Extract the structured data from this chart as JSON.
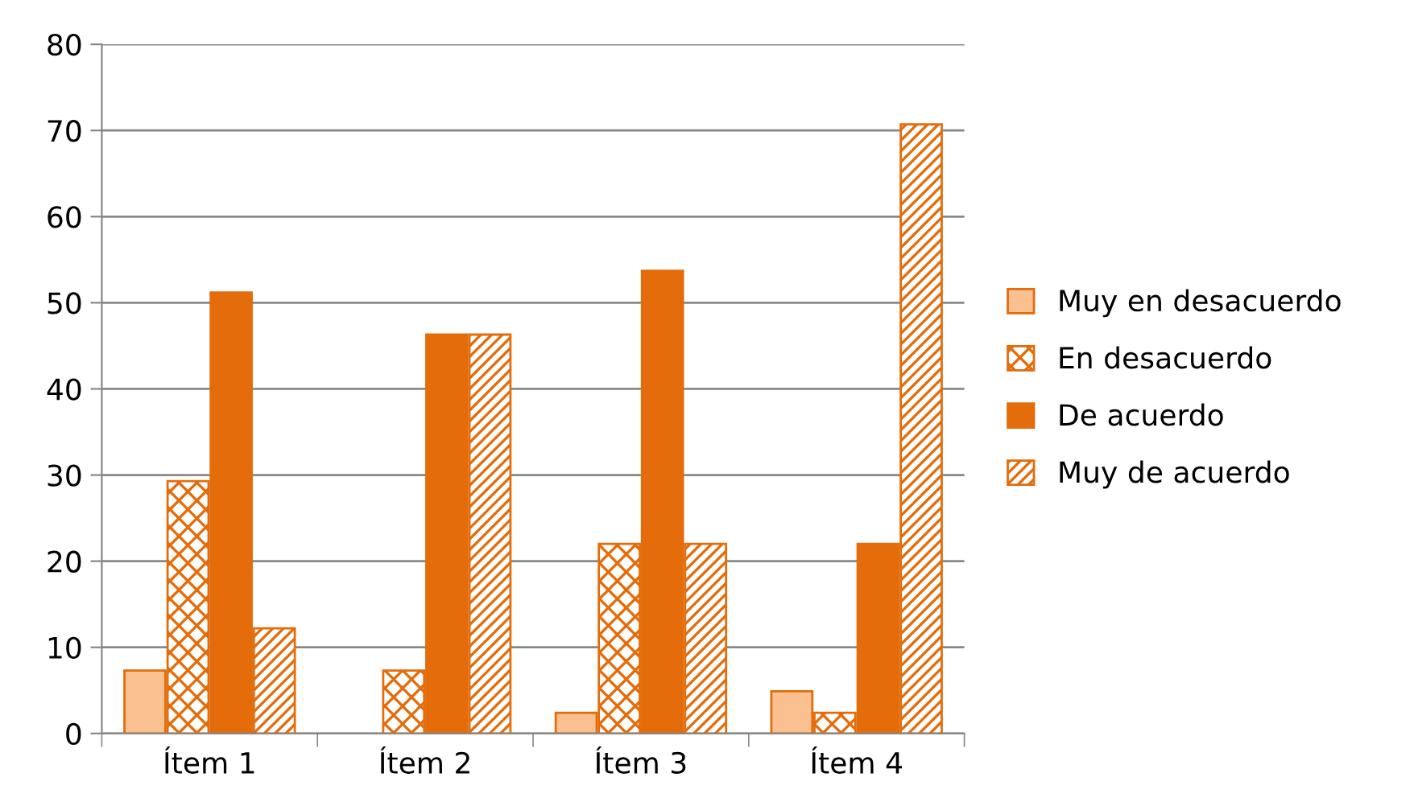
{
  "chart_data": {
    "type": "bar",
    "categories": [
      "Ítem 1",
      "Ítem 2",
      "Ítem 3",
      "Ítem 4"
    ],
    "series": [
      {
        "name": "Muy en desacuerdo",
        "color": "#fac090",
        "values": [
          7.3,
          0,
          2.4,
          4.9
        ]
      },
      {
        "name": "En desacuerdo",
        "color": "#e46c0a",
        "values": [
          29.3,
          7.3,
          22.0,
          2.4
        ]
      },
      {
        "name": "De acuerdo",
        "color": "#e46c0a",
        "values": [
          51.2,
          46.3,
          53.7,
          22.0
        ]
      },
      {
        "name": "Muy de acuerdo",
        "color": "#e46c0a",
        "values": [
          12.2,
          46.3,
          22.0,
          70.7
        ]
      }
    ],
    "ylim": [
      0,
      80
    ],
    "yticks": [
      0,
      10,
      20,
      30,
      40,
      50,
      60,
      70,
      80
    ],
    "grid": "y",
    "legend": "right"
  }
}
